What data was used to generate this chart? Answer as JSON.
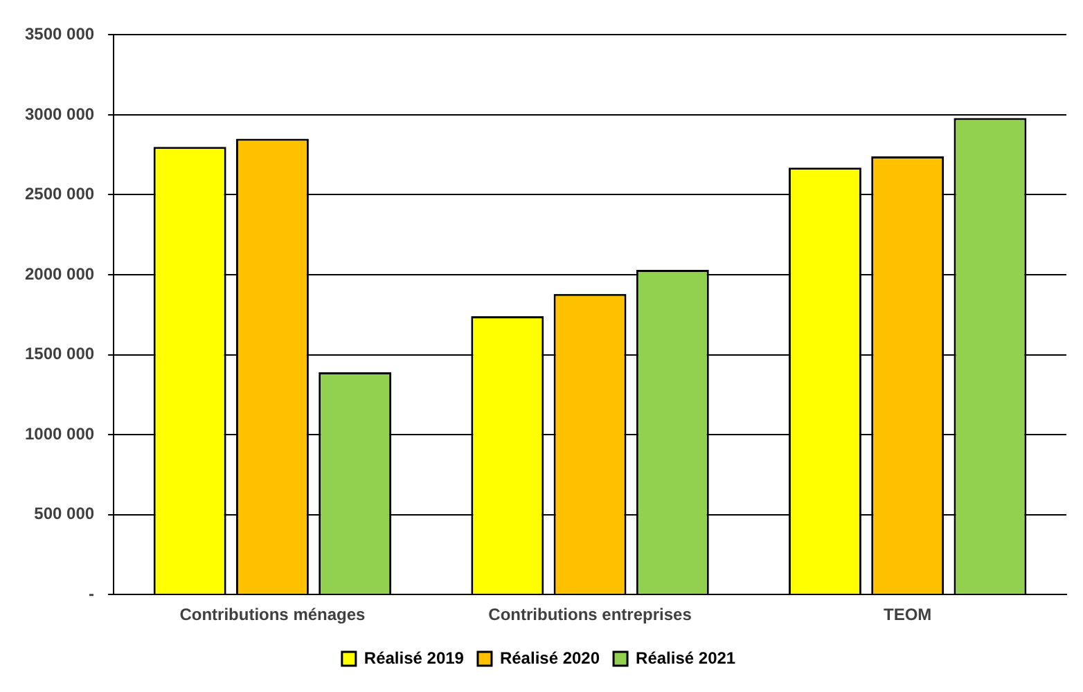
{
  "chart_data": {
    "type": "bar",
    "categories": [
      "Contributions ménages",
      "Contributions entreprises",
      "TEOM"
    ],
    "series": [
      {
        "name": "Réalisé 2019",
        "color": "#ffff00",
        "values": [
          2800000,
          1740000,
          2670000
        ]
      },
      {
        "name": "Réalisé 2020",
        "color": "#ffc000",
        "values": [
          2850000,
          1880000,
          2740000
        ]
      },
      {
        "name": "Réalisé 2021",
        "color": "#92d050",
        "values": [
          1390000,
          2030000,
          2980000
        ]
      }
    ],
    "ylim": [
      0,
      3500000
    ],
    "yticks": [
      {
        "value": 0,
        "label": "-"
      },
      {
        "value": 500000,
        "label": "500 000"
      },
      {
        "value": 1000000,
        "label": "1000 000"
      },
      {
        "value": 1500000,
        "label": "1500 000"
      },
      {
        "value": 2000000,
        "label": "2000 000"
      },
      {
        "value": 2500000,
        "label": "2500 000"
      },
      {
        "value": 3000000,
        "label": "3000 000"
      },
      {
        "value": 3500000,
        "label": "3500 000"
      }
    ],
    "grid": "y",
    "legend": "bottom"
  }
}
